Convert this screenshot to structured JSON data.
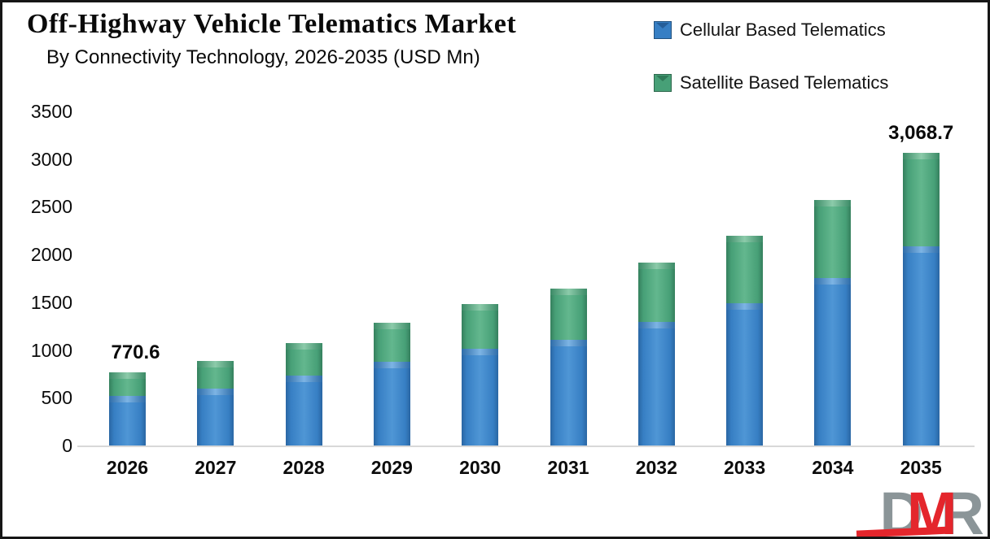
{
  "header": {
    "title": "Off-Highway Vehicle Telematics Market",
    "subtitle": "By Connectivity Technology, 2026-2035 (USD Mn)"
  },
  "legend": [
    {
      "label": "Cellular Based Telematics",
      "color": "#377fc4"
    },
    {
      "label": "Satellite Based Telematics",
      "color": "#47a077"
    }
  ],
  "chart_data": {
    "type": "bar",
    "stacked": true,
    "title": "Off-Highway Vehicle Telematics Market",
    "subtitle": "By Connectivity Technology, 2026-2035 (USD Mn)",
    "unit": "USD Mn",
    "categories": [
      "2026",
      "2027",
      "2028",
      "2029",
      "2030",
      "2031",
      "2032",
      "2033",
      "2034",
      "2035"
    ],
    "series": [
      {
        "name": "Cellular Based Telematics",
        "color": "#377fc4",
        "values": [
          520,
          600,
          730,
          875,
          1010,
          1110,
          1295,
          1490,
          1755,
          2090
        ]
      },
      {
        "name": "Satellite Based Telematics",
        "color": "#47a077",
        "values": [
          250.6,
          285,
          340,
          410,
          470,
          535,
          620,
          710,
          815,
          978.7
        ]
      }
    ],
    "totals": [
      770.6,
      885,
      1070,
      1285,
      1480,
      1645,
      1915,
      2200,
      2570,
      3068.7
    ],
    "data_labels": [
      {
        "index": 0,
        "text": "770.6"
      },
      {
        "index": 9,
        "text": "3,068.7"
      }
    ],
    "ylim": [
      0,
      3500
    ],
    "yticks": [
      0,
      500,
      1000,
      1500,
      2000,
      2500,
      3000,
      3500
    ],
    "ytick_labels": [
      "0",
      "500",
      "1000",
      "1500",
      "2000",
      "2500",
      "3000",
      "3500"
    ],
    "grid": false,
    "legend_position": "top-right",
    "axis_line_color": "#d8d8d8"
  },
  "logo": {
    "letters": [
      "D",
      "M",
      "R"
    ],
    "gray": "#8b9598",
    "red": "#e4262c"
  },
  "colors": {
    "frame": "#161616",
    "background": "#ffffff",
    "text": "#0c0c0c"
  }
}
